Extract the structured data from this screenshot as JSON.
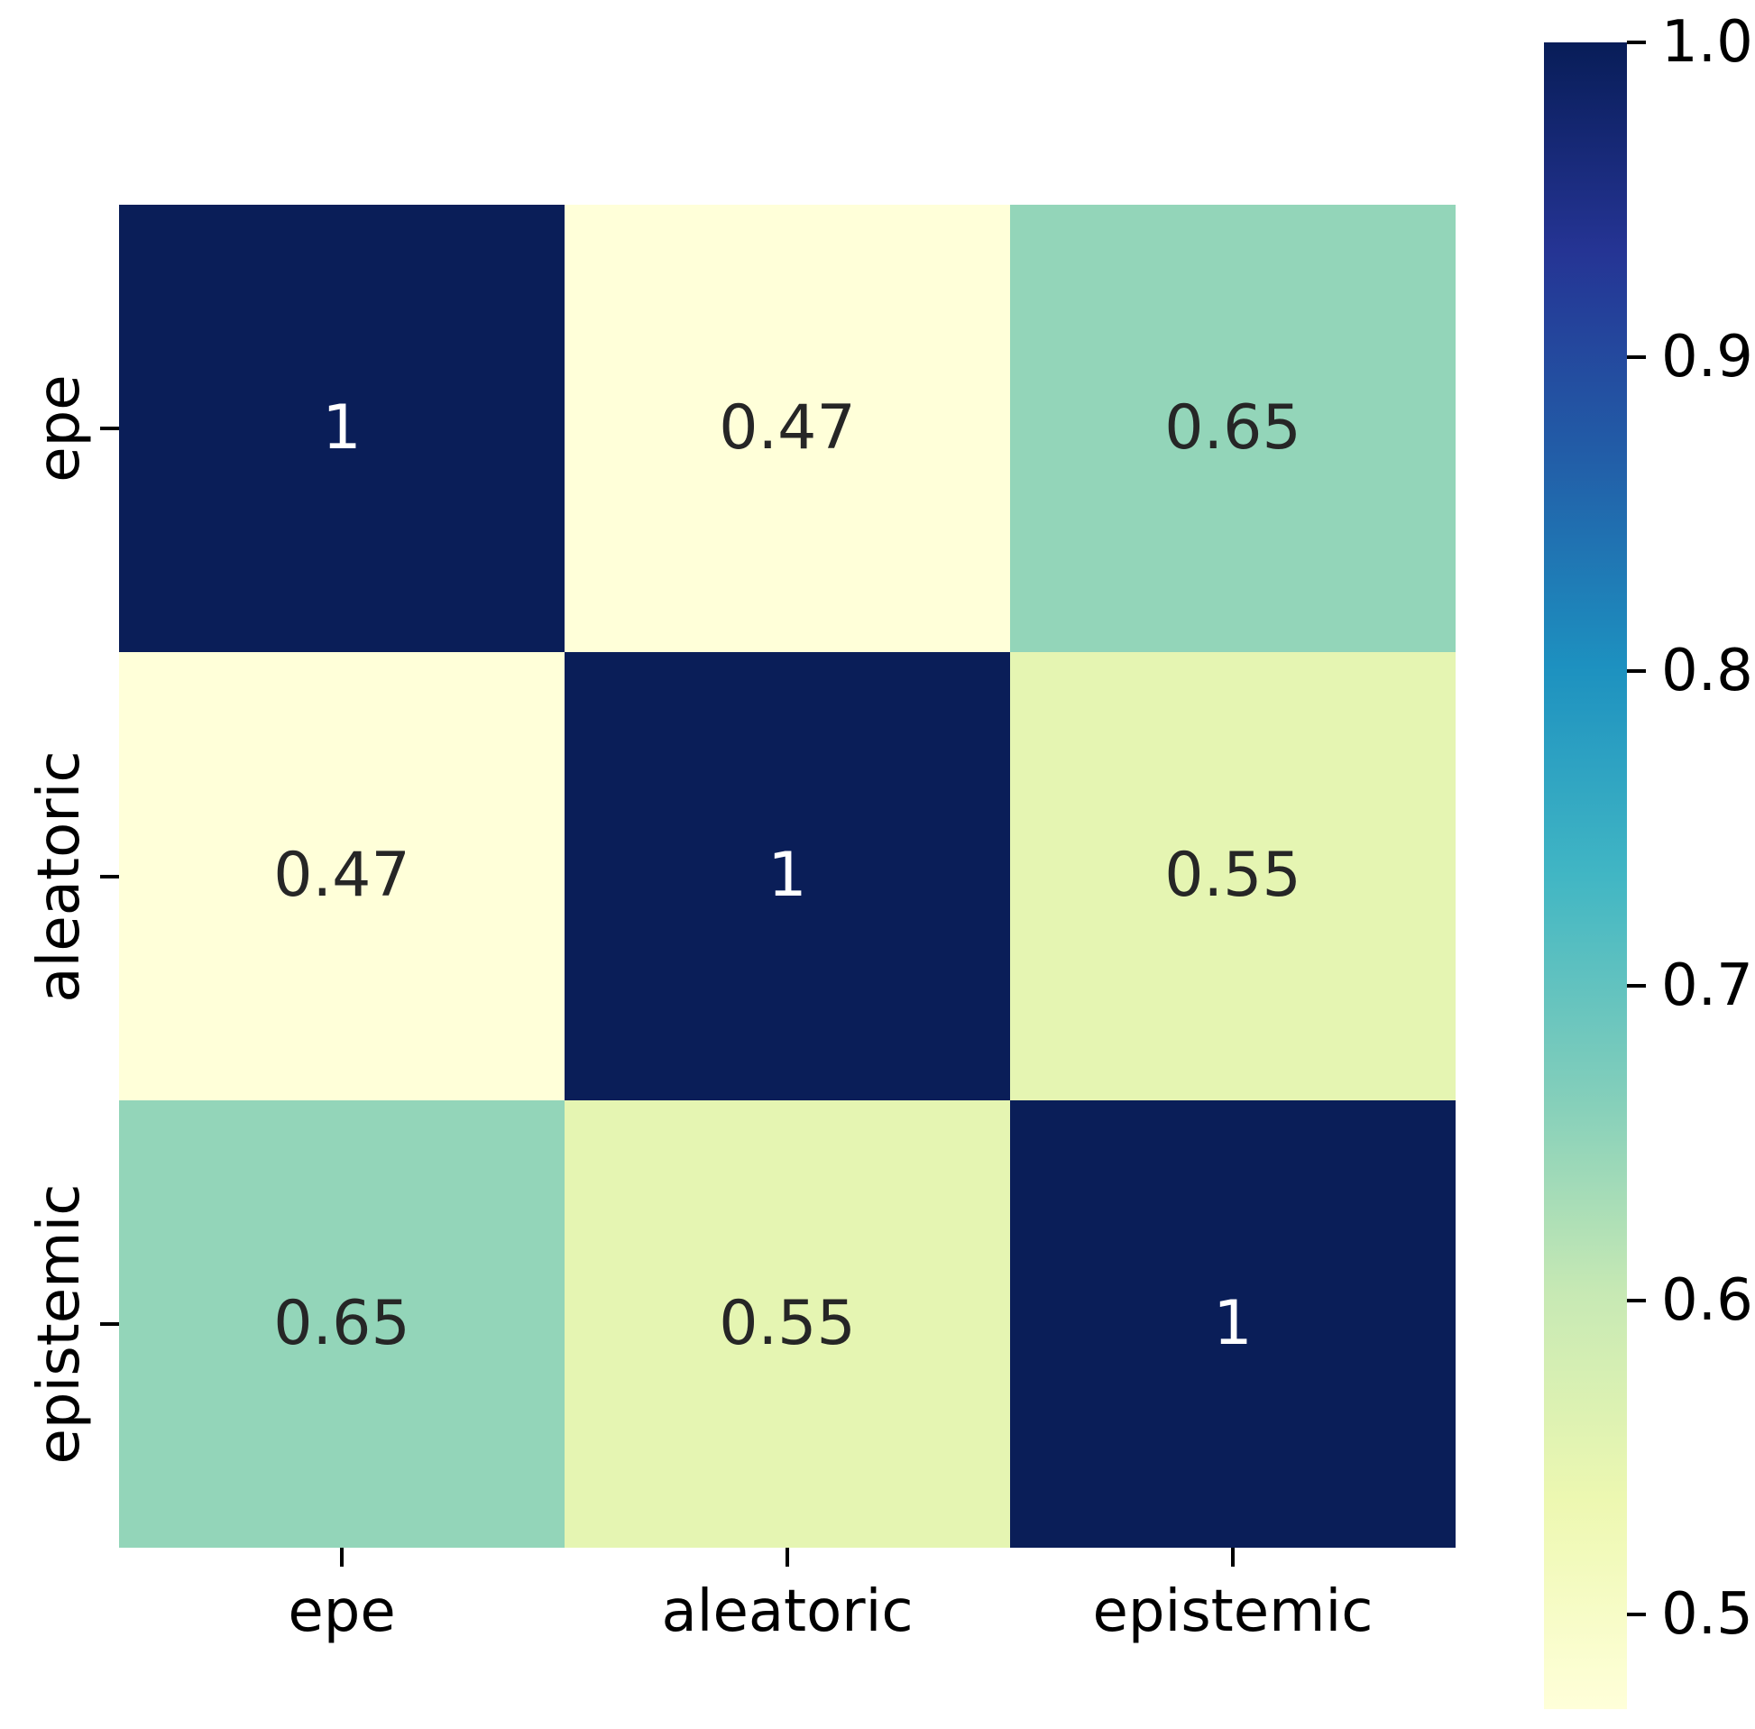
{
  "chart_data": {
    "type": "heatmap",
    "title": "",
    "categories": [
      "epe",
      "aleatoric",
      "epistemic"
    ],
    "matrix": [
      [
        1,
        0.47,
        0.65
      ],
      [
        0.47,
        1,
        0.55
      ],
      [
        0.65,
        0.55,
        1
      ]
    ],
    "cell_labels": [
      [
        "1",
        "0.47",
        "0.65"
      ],
      [
        "0.47",
        "1",
        "0.55"
      ],
      [
        "0.65",
        "0.55",
        "1"
      ]
    ],
    "cell_colors": [
      [
        "#0a1e58",
        "#ffffd9",
        "#93d5b9"
      ],
      [
        "#ffffd9",
        "#0a1e58",
        "#e5f5b2"
      ],
      [
        "#93d5b9",
        "#e5f5b2",
        "#0a1e58"
      ]
    ],
    "cell_text_colors": [
      [
        "#ffffff",
        "#262626",
        "#262626"
      ],
      [
        "#262626",
        "#ffffff",
        "#262626"
      ],
      [
        "#262626",
        "#262626",
        "#ffffff"
      ]
    ],
    "colorbar": {
      "colormap": "YlGnBu",
      "vmin": 0.47,
      "vmax": 1.0,
      "tick_values": [
        1.0,
        0.9,
        0.8,
        0.7,
        0.6,
        0.5
      ],
      "tick_labels": [
        "1.0",
        "0.9",
        "0.8",
        "0.7",
        "0.6",
        "0.5"
      ],
      "gradient_top_to_bottom": [
        "#081d58",
        "#253494",
        "#225ea8",
        "#1d91c0",
        "#41b6c4",
        "#7fcdbb",
        "#c7e9b4",
        "#edf8b1",
        "#ffffd9"
      ]
    }
  }
}
